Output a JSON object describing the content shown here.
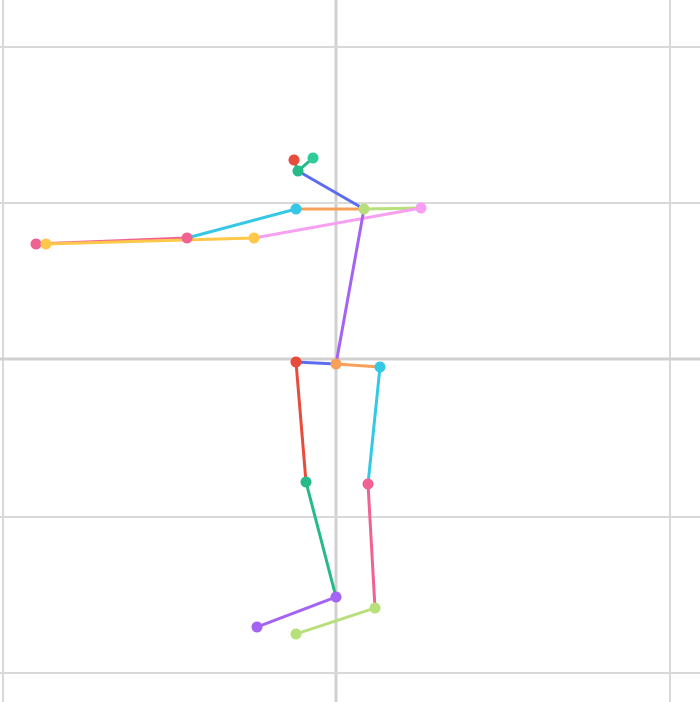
{
  "figure": {
    "kind": "pose-skeleton",
    "grid": {
      "visible": true,
      "minor_color": "#d9d9d9",
      "major_color": "#d0d0d0"
    },
    "joints": [
      {
        "id": "head-left",
        "color": "#e74c3c"
      },
      {
        "id": "head-right",
        "color": "#2ecc9a"
      },
      {
        "id": "neck-top",
        "color": "#26b98a"
      },
      {
        "id": "neck",
        "color": "#b7e07a"
      },
      {
        "id": "shoulder-left",
        "color": "#35c8e6"
      },
      {
        "id": "hand-left-top",
        "color": "#f06292"
      },
      {
        "id": "elbow-left-top",
        "color": "#f06292"
      },
      {
        "id": "elbow-left",
        "color": "#ffc84a"
      },
      {
        "id": "hand-left",
        "color": "#ffc84a"
      },
      {
        "id": "shoulder-right",
        "color": "#f79ff0"
      },
      {
        "id": "hip-left",
        "color": "#e74c3c"
      },
      {
        "id": "pelvis",
        "color": "#f7a05a"
      },
      {
        "id": "hip-right",
        "color": "#35c8e6"
      },
      {
        "id": "knee-left",
        "color": "#26b98a"
      },
      {
        "id": "knee-right",
        "color": "#f06292"
      },
      {
        "id": "ankle-left",
        "color": "#a463f2"
      },
      {
        "id": "ankle-right",
        "color": "#b7e07a"
      },
      {
        "id": "toe-left",
        "color": "#a463f2"
      },
      {
        "id": "toe-right",
        "color": "#b7e07a"
      }
    ],
    "bones": [
      {
        "from": "head-left",
        "to": "neck-top",
        "color": "#26b98a"
      },
      {
        "from": "head-right",
        "to": "neck-top",
        "color": "#26b98a"
      },
      {
        "from": "neck-top",
        "to": "neck",
        "color": "#5b6cf0"
      },
      {
        "from": "shoulder-left",
        "to": "neck",
        "color": "#f7a05a"
      },
      {
        "from": "neck",
        "to": "shoulder-right",
        "color": "#b7e07a"
      },
      {
        "from": "shoulder-left",
        "to": "elbow-left-top",
        "color": "#35c8e6"
      },
      {
        "from": "elbow-left-top",
        "to": "hand-left-top",
        "color": "#f06292"
      },
      {
        "from": "shoulder-right",
        "to": "elbow-left",
        "color": "#f79ff0"
      },
      {
        "from": "elbow-left",
        "to": "hand-left",
        "color": "#ffc84a"
      },
      {
        "from": "neck",
        "to": "pelvis",
        "color": "#a463f2"
      },
      {
        "from": "hip-left",
        "to": "pelvis",
        "color": "#5b6cf0"
      },
      {
        "from": "pelvis",
        "to": "hip-right",
        "color": "#f7a05a"
      },
      {
        "from": "hip-left",
        "to": "knee-left",
        "color": "#e74c3c"
      },
      {
        "from": "knee-left",
        "to": "ankle-left",
        "color": "#26b98a"
      },
      {
        "from": "ankle-left",
        "to": "toe-left",
        "color": "#a463f2"
      },
      {
        "from": "hip-right",
        "to": "knee-right",
        "color": "#35c8e6"
      },
      {
        "from": "knee-right",
        "to": "ankle-right",
        "color": "#f06292"
      },
      {
        "from": "ankle-right",
        "to": "toe-right",
        "color": "#b7e07a"
      }
    ]
  }
}
